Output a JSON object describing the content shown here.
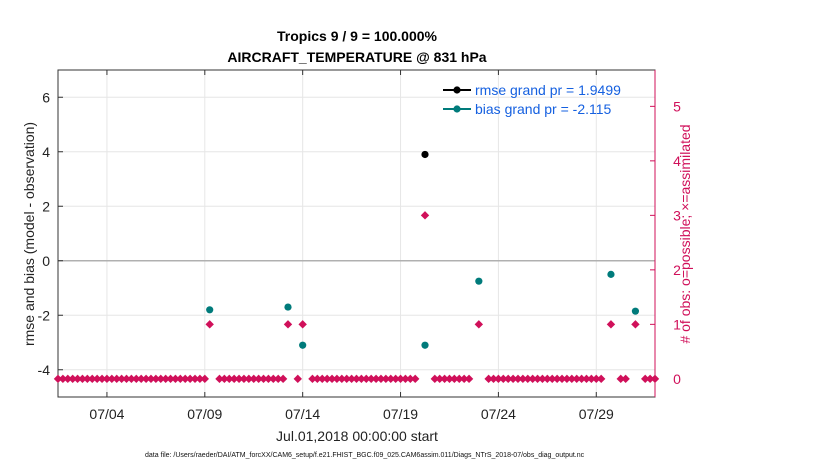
{
  "chart_data": {
    "type": "scatter",
    "title": "Tropics 9 / 9 = 100.000%",
    "subtitle": "AIRCRAFT_TEMPERATURE @ 831 hPa",
    "xlabel": "Jul.01,2018 00:00:00 start",
    "ylabel": "rmse and bias (model - observation)",
    "ylabel_right": "# of obs: o=possible; ×=assimilated",
    "xlim": [
      1.5,
      32
    ],
    "ylim": [
      -5,
      7
    ],
    "ylim_right": [
      -0.333,
      5.667
    ],
    "x_ticks": [
      4,
      9,
      14,
      19,
      24,
      29
    ],
    "x_tick_labels": [
      "07/04",
      "07/09",
      "07/14",
      "07/19",
      "07/24",
      "07/29"
    ],
    "y_ticks": [
      -4,
      -2,
      0,
      2,
      4,
      6
    ],
    "y_tick_labels": [
      "-4",
      "-2",
      "0",
      "2",
      "4",
      "6"
    ],
    "y_ticks_right": [
      0,
      1,
      2,
      3,
      4,
      5
    ],
    "y_tick_labels_right": [
      "0",
      "1",
      "2",
      "3",
      "4",
      "5"
    ],
    "grid": true,
    "legend_position": "top-right",
    "footer": "data file: /Users/raeder/DAI/ATM_forcXX/CAM6_setup/f.e21.FHIST_BGC.f09_025.CAM6assim.011/Diags_NTrS_2018-07/obs_diag_output.nc",
    "series": [
      {
        "name": "rmse grand pr = 1.9499",
        "color": "#000000",
        "x": [
          20.25
        ],
        "y": [
          3.9
        ]
      },
      {
        "name": "bias grand pr = -2.115",
        "color": "#007b7b",
        "x": [
          9.25,
          13.25,
          14.0,
          20.25,
          23.0,
          29.75,
          31.0
        ],
        "y": [
          -1.8,
          -1.7,
          -3.1,
          -3.1,
          -0.75,
          -0.5,
          -1.85
        ]
      },
      {
        "name": "obs count",
        "color": "#d0105a",
        "marker": "diamond",
        "axis": "right",
        "x_start": 1.5,
        "x_step": 0.25,
        "counts_nonzero": {
          "9.25": 1,
          "13.25": 1,
          "14.0": 1,
          "20.25": 3,
          "23.0": 1,
          "29.75": 1,
          "31.0": 1
        },
        "gaps": [
          9.5,
          13.5,
          14.25,
          20.0,
          20.5,
          22.75,
          23.25,
          29.5,
          30.0,
          30.75,
          31.25
        ]
      }
    ]
  }
}
